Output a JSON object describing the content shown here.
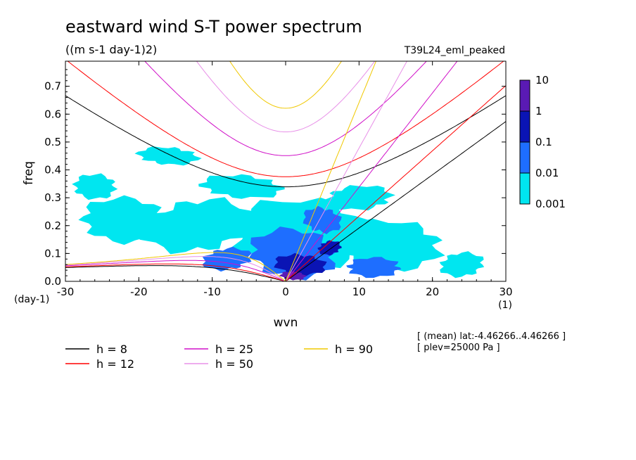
{
  "header": {
    "title": "eastward wind S-T power spectrum",
    "units": "((m s-1 day-1)2)",
    "run": "T39L24_eml_peaked"
  },
  "axes": {
    "xlabel": "wvn",
    "ylabel": "freq",
    "x_unit": "(1)",
    "y_unit": "(day-1)"
  },
  "notes": [
    "[ (mean) lat:-4.46266..4.46266 ]",
    "[ plev=25000 Pa ]"
  ],
  "colorbar": {
    "levels": [
      "10",
      "1",
      "0.1",
      "0.01",
      "0.001"
    ],
    "colors": [
      "#5a1ab4",
      "#0a14b4",
      "#1e6eff",
      "#00e6f0"
    ]
  },
  "legend": [
    {
      "label": "h =  8",
      "color": "#000000"
    },
    {
      "label": "h = 25",
      "color": "#d010c8"
    },
    {
      "label": "h = 90",
      "color": "#f0c800"
    },
    {
      "label": "h = 12",
      "color": "#ff0000"
    },
    {
      "label": "h = 50",
      "color": "#e890e8"
    }
  ],
  "chart_data": {
    "type": "heatmap",
    "xlim": [
      -30,
      30
    ],
    "ylim": [
      0,
      0.8
    ],
    "x_ticks": [
      -30,
      -20,
      -10,
      0,
      10,
      20,
      30
    ],
    "x_tick_labels": [
      "-30",
      "-20",
      "-10",
      "0",
      "10",
      "20",
      "30"
    ],
    "y_ticks": [
      0,
      0.1,
      0.2,
      0.3,
      0.4,
      0.5,
      0.6,
      0.7
    ],
    "y_tick_labels": [
      "0.0",
      "0.1",
      "0.2",
      "0.3",
      "0.4",
      "0.5",
      "0.6",
      "0.7"
    ],
    "contour_levels": [
      0.001,
      0.01,
      0.1,
      1,
      10
    ],
    "equivalent_depths_m": [
      8,
      12,
      25,
      50,
      90
    ],
    "dispersion_curves": [
      "kelvin",
      "rossby",
      "inertia-gravity"
    ],
    "spectrum_blobs": [
      {
        "x": -22,
        "y": 0.22,
        "rx": 8,
        "ry": 0.09,
        "level": 1
      },
      {
        "x": -12,
        "y": 0.2,
        "rx": 9,
        "ry": 0.12,
        "level": 1
      },
      {
        "x": 2,
        "y": 0.17,
        "rx": 13,
        "ry": 0.14,
        "level": 1
      },
      {
        "x": 14,
        "y": 0.13,
        "rx": 10,
        "ry": 0.1,
        "level": 1
      },
      {
        "x": -26,
        "y": 0.34,
        "rx": 4,
        "ry": 0.05,
        "level": 1
      },
      {
        "x": -6,
        "y": 0.34,
        "rx": 7,
        "ry": 0.05,
        "level": 1
      },
      {
        "x": 10,
        "y": 0.3,
        "rx": 6,
        "ry": 0.05,
        "level": 1
      },
      {
        "x": -16,
        "y": 0.45,
        "rx": 5,
        "ry": 0.04,
        "level": 1
      },
      {
        "x": 24,
        "y": 0.06,
        "rx": 4,
        "ry": 0.05,
        "level": 1
      },
      {
        "x": 1,
        "y": 0.1,
        "rx": 8,
        "ry": 0.1,
        "level": 2
      },
      {
        "x": -8,
        "y": 0.08,
        "rx": 4,
        "ry": 0.05,
        "level": 2
      },
      {
        "x": 12,
        "y": 0.05,
        "rx": 5,
        "ry": 0.04,
        "level": 2
      },
      {
        "x": 5,
        "y": 0.22,
        "rx": 3,
        "ry": 0.06,
        "level": 2
      },
      {
        "x": 2,
        "y": 0.06,
        "rx": 4,
        "ry": 0.05,
        "level": 3
      },
      {
        "x": 6,
        "y": 0.12,
        "rx": 2,
        "ry": 0.03,
        "level": 3
      },
      {
        "x": 1,
        "y": 0.02,
        "rx": 2,
        "ry": 0.02,
        "level": 4
      }
    ]
  }
}
